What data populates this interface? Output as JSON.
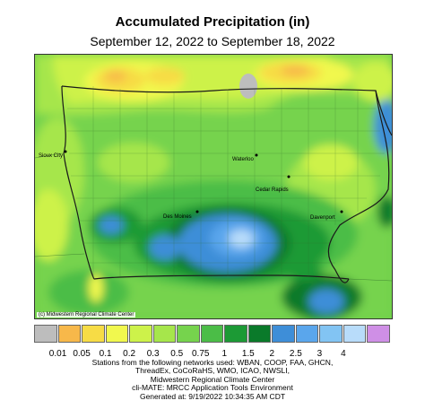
{
  "title": "Accumulated Precipitation (in)",
  "subtitle": "September 12, 2022 to September 18, 2022",
  "map": {
    "credit": "(c) Midwestern Regional Climate Center",
    "cities": [
      {
        "name": "Sioux City"
      },
      {
        "name": "Waterloo"
      },
      {
        "name": "Cedar Rapids"
      },
      {
        "name": "Des Moines"
      },
      {
        "name": "Davenport"
      }
    ]
  },
  "legend": {
    "colors": [
      "#bdbdbd",
      "#f7b84a",
      "#f7dc45",
      "#f1f84e",
      "#cdf24a",
      "#a6e64b",
      "#76d34d",
      "#4bbd47",
      "#1c9a35",
      "#0a7a2a",
      "#3e8ed8",
      "#5aa6ec",
      "#82c4f3",
      "#b8dcfa",
      "#cf8fe6"
    ],
    "labels": [
      "0.01",
      "0.05",
      "0.1",
      "0.2",
      "0.3",
      "0.5",
      "0.75",
      "1",
      "1.5",
      "2",
      "2.5",
      "3",
      "4"
    ]
  },
  "footer": {
    "lines": [
      "Stations from the following networks used: WBAN, COOP, FAA, GHCN,",
      "ThreadEx, CoCoRaHS, WMO, ICAO, NWSLI,",
      "Midwestern Regional Climate Center",
      "cli-MATE: MRCC Application Tools Environment",
      "Generated at: 9/19/2022 10:34:35 AM CDT"
    ]
  }
}
